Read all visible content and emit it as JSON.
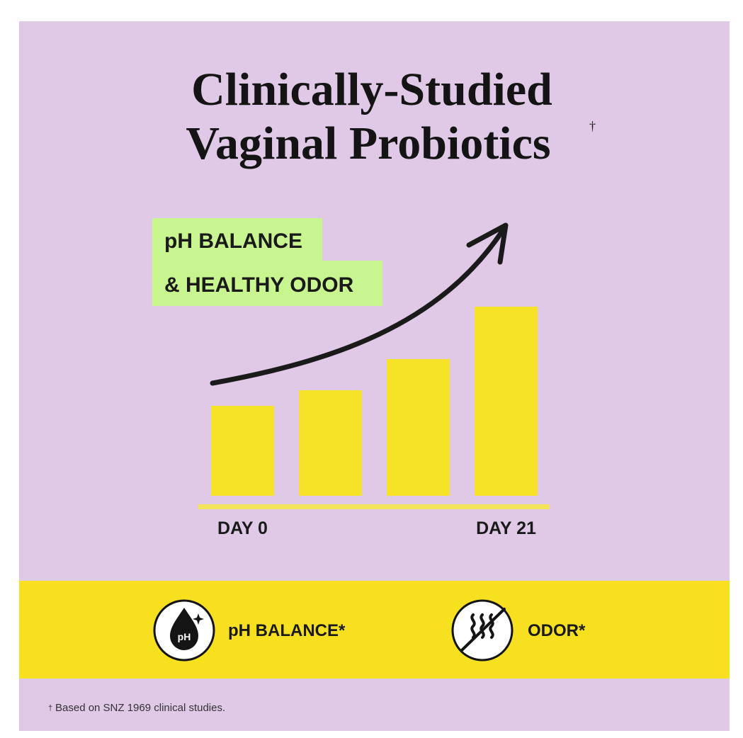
{
  "chart_data": {
    "type": "bar",
    "title": [
      "Clinically-Studied",
      "Vaginal Probiotics"
    ],
    "title_mark": "†",
    "annotations": [
      "pH BALANCE",
      "& HEALTHY ODOR"
    ],
    "categories": [
      "DAY 0",
      null,
      null,
      "DAY 21"
    ],
    "values": [
      127,
      149,
      193,
      267
    ],
    "color": "#f6e227",
    "ylim": [
      0,
      300
    ],
    "benefits": [
      "pH BALANCE*",
      "ODOR*"
    ],
    "icon_label": "pH",
    "footnote_mark": "†",
    "footnote": "Based on SNZ 1969 clinical studies."
  }
}
